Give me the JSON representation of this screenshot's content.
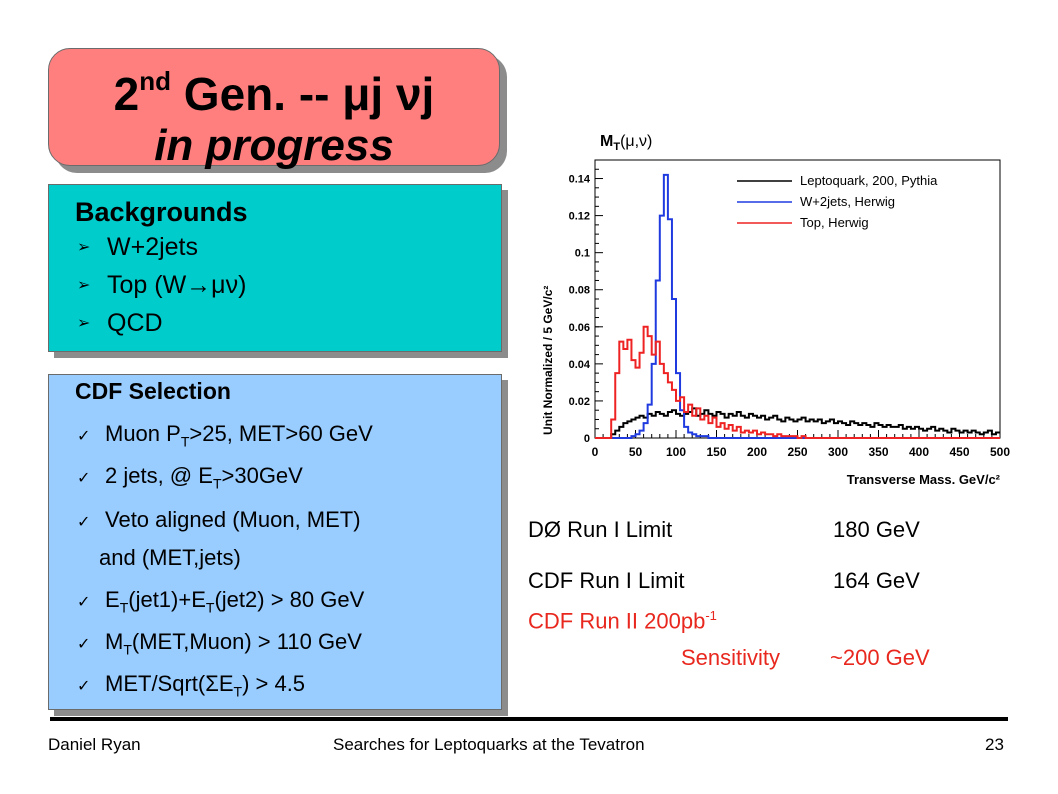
{
  "slide": {
    "title_line1_main": "2",
    "title_line1_sup": "nd",
    "title_line1_rest": " Gen. -- μj νj",
    "title_line2": "in progress"
  },
  "backgrounds": {
    "heading": "Backgrounds",
    "items": [
      "W+2jets",
      "Top (W→μν)",
      "QCD"
    ],
    "bullet_icon": "arrow-bullet"
  },
  "selection": {
    "heading": "CDF Selection",
    "items": [
      {
        "pre": "Muon P",
        "sub": "T",
        "post": ">25, MET>60 GeV"
      },
      {
        "pre": "2 jets, @ E",
        "sub": "T",
        "post": ">30GeV"
      },
      {
        "pre": "Veto aligned (Muon, MET)",
        "sub": "",
        "post": ""
      },
      {
        "pre": "and (MET,jets)",
        "sub": "",
        "post": ""
      },
      {
        "pre": "E",
        "sub": "T",
        "post": "(jet1)+E",
        "sub2": "T",
        "post2": "(jet2) > 80 GeV"
      },
      {
        "pre": "M",
        "sub": "T",
        "post": "(MET,Muon) > 110 GeV"
      },
      {
        "pre": "MET/Sqrt(ΣE",
        "sub": "T",
        "post": ") > 4.5"
      }
    ],
    "check_icon": "checkmark"
  },
  "limits": {
    "d0_label": "DØ Run I Limit",
    "d0_value": "180 GeV",
    "cdf1_label": "CDF Run I Limit",
    "cdf1_value": "164 GeV",
    "cdf2_label_pre": "CDF Run II 200pb",
    "cdf2_label_sup": "-1",
    "cdf2_sens": "Sensitivity",
    "cdf2_value": "~200 GeV",
    "red_color": "#e8281e"
  },
  "footer": {
    "author": "Daniel Ryan",
    "title": "Searches for Leptoquarks at the Tevatron",
    "page": "23"
  },
  "chart_data": {
    "type": "line",
    "title": "M_T(μ,ν)",
    "xlabel": "Transverse Mass, GeV/c²",
    "ylabel": "Unit Normalized / 5 GeV/c²",
    "xlim": [
      0,
      500
    ],
    "ylim": [
      0,
      0.15
    ],
    "xticks": [
      "0",
      "50",
      "100",
      "150",
      "200",
      "250",
      "300",
      "350",
      "400",
      "450",
      "500"
    ],
    "yticks": [
      "0",
      "0.02",
      "0.04",
      "0.06",
      "0.08",
      "0.1",
      "0.12",
      "0.14"
    ],
    "legend_position": "top-right",
    "bin_width": 5,
    "series": [
      {
        "name": "Leptoquark, 200, Pythia",
        "color": "#000000",
        "values": [
          0,
          0,
          0,
          0,
          0.002,
          0.004,
          0.006,
          0.008,
          0.009,
          0.01,
          0.011,
          0.012,
          0.011,
          0.013,
          0.012,
          0.014,
          0.013,
          0.012,
          0.014,
          0.015,
          0.013,
          0.012,
          0.013,
          0.014,
          0.016,
          0.012,
          0.013,
          0.015,
          0.013,
          0.012,
          0.014,
          0.013,
          0.011,
          0.013,
          0.012,
          0.014,
          0.012,
          0.011,
          0.013,
          0.012,
          0.011,
          0.012,
          0.01,
          0.011,
          0.012,
          0.01,
          0.009,
          0.011,
          0.01,
          0.009,
          0.01,
          0.011,
          0.009,
          0.01,
          0.009,
          0.01,
          0.008,
          0.009,
          0.01,
          0.008,
          0.009,
          0.008,
          0.007,
          0.009,
          0.008,
          0.007,
          0.008,
          0.007,
          0.006,
          0.008,
          0.007,
          0.006,
          0.007,
          0.006,
          0.006,
          0.007,
          0.005,
          0.006,
          0.005,
          0.006,
          0.005,
          0.004,
          0.005,
          0.006,
          0.004,
          0.005,
          0.004,
          0.003,
          0.005,
          0.004,
          0.003,
          0.004,
          0.003,
          0.004,
          0.003,
          0.002,
          0.003,
          0.004,
          0.002,
          0.003
        ]
      },
      {
        "name": "W+2jets, Herwig",
        "color": "#1f3be0",
        "values": [
          0,
          0,
          0,
          0,
          0,
          0,
          0,
          0,
          0,
          0.001,
          0.002,
          0.004,
          0.008,
          0.018,
          0.04,
          0.085,
          0.12,
          0.142,
          0.118,
          0.075,
          0.035,
          0.015,
          0.006,
          0.003,
          0.002,
          0.001,
          0.001,
          0.001,
          0,
          0,
          0,
          0,
          0,
          0,
          0,
          0,
          0,
          0,
          0,
          0,
          0,
          0,
          0,
          0,
          0,
          0,
          0,
          0,
          0,
          0,
          0,
          0,
          0,
          0,
          0,
          0,
          0,
          0,
          0,
          0,
          0,
          0,
          0,
          0,
          0,
          0,
          0,
          0,
          0,
          0,
          0,
          0,
          0,
          0,
          0,
          0,
          0,
          0,
          0,
          0,
          0,
          0,
          0,
          0,
          0,
          0,
          0,
          0,
          0,
          0,
          0,
          0,
          0,
          0,
          0,
          0,
          0,
          0,
          0,
          0
        ]
      },
      {
        "name": "Top, Herwig",
        "color": "#ee2222",
        "values": [
          0,
          0,
          0,
          0,
          0.01,
          0.035,
          0.052,
          0.048,
          0.053,
          0.042,
          0.038,
          0.046,
          0.06,
          0.055,
          0.045,
          0.052,
          0.04,
          0.035,
          0.03,
          0.026,
          0.02,
          0.022,
          0.014,
          0.018,
          0.012,
          0.016,
          0.01,
          0.012,
          0.008,
          0.011,
          0.006,
          0.008,
          0.005,
          0.007,
          0.004,
          0.006,
          0.003,
          0.004,
          0.003,
          0.004,
          0.002,
          0.003,
          0.002,
          0.002,
          0.001,
          0.002,
          0.001,
          0.001,
          0.001,
          0.001,
          0,
          0.001,
          0,
          0,
          0,
          0,
          0,
          0,
          0,
          0,
          0,
          0,
          0,
          0,
          0,
          0,
          0,
          0,
          0,
          0,
          0,
          0,
          0,
          0,
          0,
          0,
          0,
          0,
          0,
          0,
          0,
          0,
          0,
          0,
          0,
          0,
          0,
          0,
          0,
          0,
          0,
          0,
          0,
          0,
          0,
          0,
          0,
          0,
          0,
          0
        ]
      }
    ]
  }
}
